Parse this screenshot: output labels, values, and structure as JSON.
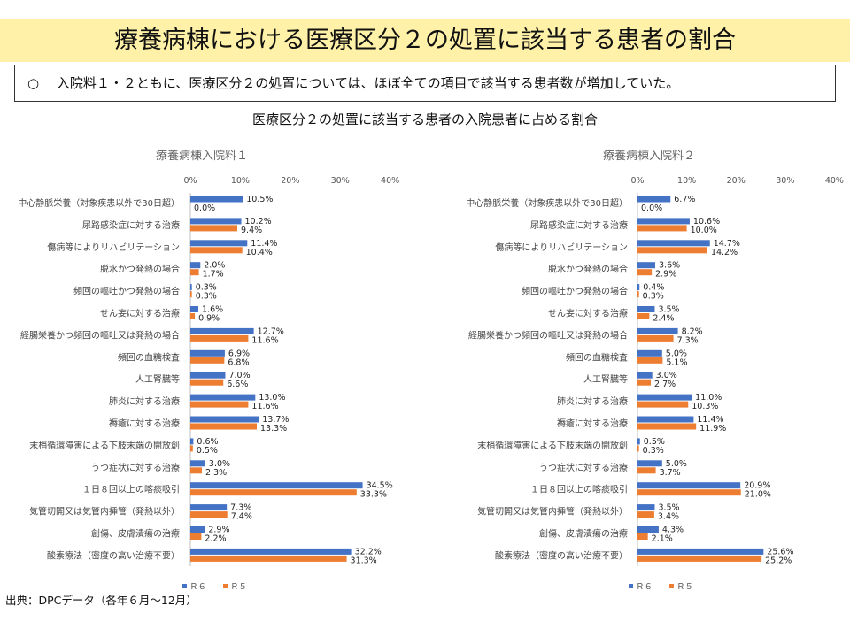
{
  "page": {
    "title": "療養病棟における医療区分２の処置に該当する患者の割合",
    "summary": "○　 入院料１・２ともに、医療区分２の処置については、ほぼ全ての項目で該当する患者数が増加していた。",
    "chart_heading": "医療区分２の処置に該当する患者の入院患者に占める割合",
    "source": "出典：DPCデータ（各年６月～12月）"
  },
  "colors": {
    "r6": "#4472c4",
    "r5": "#ed7d31",
    "title_band": "#fff2a8"
  },
  "chart_data": [
    {
      "type": "bar",
      "orientation": "horizontal",
      "title": "療養病棟入院料１",
      "categories": [
        "中心静脈栄養（対象疾患以外で30日超）",
        "尿路感染症に対する治療",
        "傷病等によりリハビリテーション",
        "脱水かつ発熱の場合",
        "頻回の嘔吐かつ発熱の場合",
        "せん妄に対する治療",
        "経腸栄養かつ頻回の嘔吐又は発熱の場合",
        "頻回の血糖検査",
        "人工腎臓等",
        "肺炎に対する治療",
        "褥瘡に対する治療",
        "末梢循環障害による下肢末端の開放創",
        "うつ症状に対する治療",
        "１日８回以上の喀痰吸引",
        "気管切開又は気管内挿管（発熱以外）",
        "創傷、皮膚潰瘍の治療",
        "酸素療法（密度の高い治療不要）"
      ],
      "series": [
        {
          "name": "Ｒ６",
          "values": [
            10.5,
            10.2,
            11.4,
            2.0,
            0.3,
            1.6,
            12.7,
            6.9,
            7.0,
            13.0,
            13.7,
            0.6,
            3.0,
            34.5,
            7.3,
            2.9,
            32.2
          ]
        },
        {
          "name": "Ｒ５",
          "values": [
            0.0,
            9.4,
            10.4,
            1.7,
            0.3,
            0.9,
            11.6,
            6.8,
            6.6,
            11.6,
            13.3,
            0.5,
            2.3,
            33.3,
            7.4,
            2.2,
            31.3
          ]
        }
      ],
      "xlim": [
        0,
        40
      ],
      "xticks": [
        "0%",
        "10%",
        "20%",
        "30%",
        "40%"
      ],
      "legend_position": "bottom"
    },
    {
      "type": "bar",
      "orientation": "horizontal",
      "title": "療養病棟入院料２",
      "categories": [
        "中心静脈栄養（対象疾患以外で30日超）",
        "尿路感染症に対する治療",
        "傷病等によりリハビリテーション",
        "脱水かつ発熱の場合",
        "頻回の嘔吐かつ発熱の場合",
        "せん妄に対する治療",
        "経腸栄養かつ頻回の嘔吐又は発熱の場合",
        "頻回の血糖検査",
        "人工腎臓等",
        "肺炎に対する治療",
        "褥瘡に対する治療",
        "末梢循環障害による下肢末端の開放創",
        "うつ症状に対する治療",
        "１日８回以上の喀痰吸引",
        "気管切開又は気管内挿管（発熱以外）",
        "創傷、皮膚潰瘍の治療",
        "酸素療法（密度の高い治療不要）"
      ],
      "series": [
        {
          "name": "Ｒ６",
          "values": [
            6.7,
            10.6,
            14.7,
            3.6,
            0.4,
            3.5,
            8.2,
            5.0,
            3.0,
            11.0,
            11.4,
            0.5,
            5.0,
            20.9,
            3.5,
            4.3,
            25.6
          ]
        },
        {
          "name": "Ｒ５",
          "values": [
            0.0,
            10.0,
            14.2,
            2.9,
            0.3,
            2.4,
            7.3,
            5.1,
            2.7,
            10.3,
            11.9,
            0.3,
            3.7,
            21.0,
            3.4,
            2.1,
            25.2
          ]
        }
      ],
      "xlim": [
        0,
        40
      ],
      "xticks": [
        "0%",
        "10%",
        "20%",
        "30%",
        "40%"
      ],
      "legend_position": "bottom"
    }
  ]
}
